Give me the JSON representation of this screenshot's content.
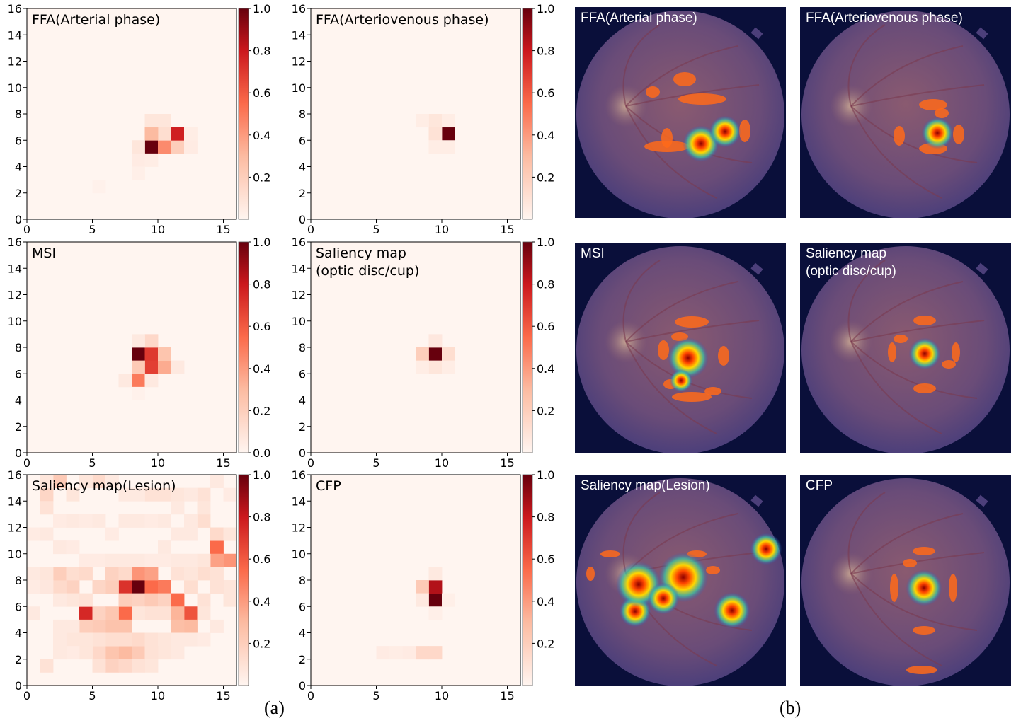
{
  "figure": {
    "label_a": "(a)",
    "label_b": "(b)",
    "colors": {
      "cmap": [
        "#fff5f0",
        "#fcbba1",
        "#fb6a4a",
        "#cb181d",
        "#67000d"
      ],
      "fundus_bg": "#0a0f3a"
    }
  },
  "chart_data": [
    {
      "type": "heatmap",
      "title": "FFA(Arterial phase)",
      "xlim": [
        0,
        16
      ],
      "ylim": [
        0,
        16
      ],
      "xticks": [
        "0",
        "5",
        "10",
        "15"
      ],
      "yticks": [
        "0",
        "2",
        "4",
        "6",
        "8",
        "10",
        "12",
        "14",
        "16"
      ],
      "colorbar": {
        "ticks": [
          "0.2",
          "0.4",
          "0.6",
          "0.8",
          "1.0"
        ],
        "range": [
          0,
          1
        ]
      },
      "cells": [
        [
          9,
          5,
          1.0
        ],
        [
          10,
          5,
          0.45
        ],
        [
          11,
          5,
          0.2
        ],
        [
          11,
          6,
          0.78
        ],
        [
          10,
          6,
          0.12
        ],
        [
          9,
          6,
          0.3
        ],
        [
          9,
          7,
          0.08
        ],
        [
          10,
          7,
          0.08
        ],
        [
          8,
          5,
          0.08
        ],
        [
          8,
          4,
          0.05
        ],
        [
          9,
          4,
          0.04
        ],
        [
          12,
          5,
          0.05
        ],
        [
          12,
          6,
          0.04
        ],
        [
          8,
          3,
          0.03
        ],
        [
          5,
          2,
          0.02
        ]
      ]
    },
    {
      "type": "heatmap",
      "title": "FFA(Arteriovenous phase)",
      "xlim": [
        0,
        16
      ],
      "ylim": [
        0,
        16
      ],
      "xticks": [
        "0",
        "5",
        "10",
        "15"
      ],
      "yticks": [
        "0",
        "2",
        "4",
        "6",
        "8",
        "10",
        "12",
        "14",
        "16"
      ],
      "colorbar": {
        "ticks": [
          "0.2",
          "0.4",
          "0.6",
          "0.8",
          "1.0"
        ],
        "range": [
          0,
          1
        ]
      },
      "cells": [
        [
          10,
          6,
          1.0
        ],
        [
          9,
          6,
          0.1
        ],
        [
          9,
          7,
          0.08
        ],
        [
          8,
          7,
          0.04
        ],
        [
          10,
          7,
          0.04
        ],
        [
          10,
          5,
          0.04
        ],
        [
          9,
          5,
          0.04
        ]
      ]
    },
    {
      "type": "heatmap",
      "title": "MSI",
      "xlim": [
        0,
        16
      ],
      "ylim": [
        0,
        16
      ],
      "xticks": [
        "0",
        "5",
        "10",
        "15"
      ],
      "yticks": [
        "0",
        "2",
        "4",
        "6",
        "8",
        "10",
        "12",
        "14",
        "16"
      ],
      "colorbar": {
        "ticks": [
          "0.0",
          "0.2",
          "0.4",
          "0.6",
          "0.8",
          "1.0"
        ],
        "range": [
          0,
          1
        ]
      },
      "cells": [
        [
          8,
          7,
          1.0
        ],
        [
          9,
          7,
          0.7
        ],
        [
          9,
          6,
          0.68
        ],
        [
          10,
          6,
          0.35
        ],
        [
          10,
          7,
          0.25
        ],
        [
          8,
          5,
          0.5
        ],
        [
          8,
          6,
          0.22
        ],
        [
          9,
          8,
          0.15
        ],
        [
          8,
          8,
          0.06
        ],
        [
          11,
          6,
          0.06
        ],
        [
          7,
          5,
          0.06
        ],
        [
          9,
          5,
          0.06
        ],
        [
          8,
          4,
          0.02
        ]
      ]
    },
    {
      "type": "heatmap",
      "title": "Saliency map\n(optic disc/cup)",
      "xlim": [
        0,
        16
      ],
      "ylim": [
        0,
        16
      ],
      "xticks": [
        "0",
        "5",
        "10",
        "15"
      ],
      "yticks": [
        "0",
        "2",
        "4",
        "6",
        "8",
        "10",
        "12",
        "14",
        "16"
      ],
      "colorbar": {
        "ticks": [
          "0.2",
          "0.4",
          "0.6",
          "0.8",
          "1.0"
        ],
        "range": [
          0,
          1
        ]
      },
      "cells": [
        [
          9,
          7,
          1.0
        ],
        [
          8,
          7,
          0.2
        ],
        [
          10,
          7,
          0.12
        ],
        [
          9,
          8,
          0.07
        ],
        [
          9,
          6,
          0.08
        ],
        [
          8,
          6,
          0.04
        ],
        [
          10,
          6,
          0.04
        ]
      ]
    },
    {
      "type": "heatmap",
      "title": "Saliency map(Lesion)",
      "xlim": [
        0,
        16
      ],
      "ylim": [
        0,
        16
      ],
      "xticks": [
        "0",
        "5",
        "10",
        "15"
      ],
      "yticks": [
        "0",
        "2",
        "4",
        "6",
        "8",
        "10",
        "12",
        "14",
        "16"
      ],
      "colorbar": {
        "ticks": [
          "0.2",
          "0.4",
          "0.6",
          "0.8",
          "1.0"
        ],
        "range": [
          0,
          1
        ]
      },
      "cells": [
        [
          8,
          7,
          1.0
        ],
        [
          7,
          7,
          0.72
        ],
        [
          9,
          7,
          0.55
        ],
        [
          10,
          7,
          0.5
        ],
        [
          8,
          8,
          0.42
        ],
        [
          9,
          8,
          0.38
        ],
        [
          4,
          5,
          0.75
        ],
        [
          12,
          5,
          0.62
        ],
        [
          11,
          6,
          0.55
        ],
        [
          7,
          5,
          0.55
        ],
        [
          14,
          10,
          0.55
        ],
        [
          15,
          9,
          0.42
        ],
        [
          14,
          9,
          0.38
        ],
        [
          11,
          5,
          0.32
        ],
        [
          12,
          4,
          0.3
        ],
        [
          11,
          4,
          0.28
        ],
        [
          6,
          4,
          0.26
        ],
        [
          7,
          4,
          0.26
        ],
        [
          5,
          4,
          0.22
        ],
        [
          4,
          4,
          0.2
        ],
        [
          6,
          5,
          0.24
        ],
        [
          5,
          5,
          0.18
        ],
        [
          7,
          6,
          0.2
        ],
        [
          8,
          6,
          0.18
        ],
        [
          9,
          6,
          0.22
        ],
        [
          10,
          6,
          0.18
        ],
        [
          6,
          7,
          0.2
        ],
        [
          5,
          7,
          0.16
        ],
        [
          3,
          7,
          0.18
        ],
        [
          2,
          7,
          0.14
        ],
        [
          2,
          8,
          0.2
        ],
        [
          3,
          8,
          0.12
        ],
        [
          4,
          8,
          0.14
        ],
        [
          6,
          8,
          0.18
        ],
        [
          7,
          8,
          0.14
        ],
        [
          7,
          2,
          0.3
        ],
        [
          6,
          2,
          0.25
        ],
        [
          8,
          2,
          0.22
        ],
        [
          5,
          2,
          0.15
        ],
        [
          6,
          1,
          0.18
        ],
        [
          7,
          1,
          0.15
        ],
        [
          8,
          3,
          0.14
        ],
        [
          7,
          3,
          0.12
        ],
        [
          9,
          3,
          0.1
        ],
        [
          6,
          3,
          0.12
        ],
        [
          5,
          3,
          0.1
        ],
        [
          10,
          3,
          0.08
        ],
        [
          4,
          2,
          0.08
        ],
        [
          5,
          1,
          0.1
        ],
        [
          1,
          1,
          0.1
        ],
        [
          2,
          15,
          0.22
        ],
        [
          1,
          14,
          0.16
        ],
        [
          5,
          15,
          0.14
        ],
        [
          1,
          13,
          0.1
        ],
        [
          3,
          14,
          0.08
        ],
        [
          9,
          14,
          0.1
        ],
        [
          10,
          14,
          0.1
        ],
        [
          11,
          14,
          0.08
        ],
        [
          13,
          14,
          0.1
        ],
        [
          13,
          12,
          0.12
        ],
        [
          14,
          11,
          0.14
        ],
        [
          15,
          11,
          0.08
        ],
        [
          13,
          8,
          0.12
        ],
        [
          14,
          8,
          0.1
        ],
        [
          12,
          7,
          0.12
        ],
        [
          11,
          8,
          0.1
        ],
        [
          12,
          8,
          0.08
        ],
        [
          13,
          6,
          0.1
        ],
        [
          13,
          5,
          0.08
        ],
        [
          10,
          5,
          0.1
        ],
        [
          9,
          5,
          0.1
        ],
        [
          8,
          5,
          0.08
        ],
        [
          3,
          6,
          0.08
        ],
        [
          2,
          6,
          0.06
        ],
        [
          4,
          6,
          0.1
        ],
        [
          0,
          8,
          0.06
        ],
        [
          0,
          7,
          0.05
        ],
        [
          1,
          8,
          0.08
        ],
        [
          1,
          7,
          0.07
        ],
        [
          0,
          5,
          0.06
        ],
        [
          2,
          4,
          0.06
        ],
        [
          3,
          4,
          0.06
        ],
        [
          3,
          3,
          0.08
        ],
        [
          2,
          3,
          0.06
        ],
        [
          4,
          3,
          0.08
        ],
        [
          11,
          3,
          0.06
        ],
        [
          12,
          3,
          0.06
        ],
        [
          13,
          3,
          0.05
        ],
        [
          10,
          2,
          0.08
        ],
        [
          11,
          2,
          0.06
        ],
        [
          9,
          2,
          0.1
        ],
        [
          9,
          1,
          0.08
        ],
        [
          8,
          1,
          0.1
        ],
        [
          3,
          2,
          0.05
        ],
        [
          2,
          2,
          0.06
        ],
        [
          2,
          10,
          0.06
        ],
        [
          3,
          10,
          0.05
        ],
        [
          10,
          10,
          0.06
        ],
        [
          11,
          11,
          0.06
        ],
        [
          12,
          11,
          0.06
        ],
        [
          14,
          4,
          0.06
        ],
        [
          15,
          6,
          0.08
        ],
        [
          15,
          7,
          0.08
        ],
        [
          14,
          7,
          0.1
        ],
        [
          1,
          15,
          0.08
        ],
        [
          4,
          15,
          0.08
        ],
        [
          6,
          15,
          0.06
        ],
        [
          7,
          14,
          0.06
        ],
        [
          8,
          14,
          0.06
        ],
        [
          12,
          14,
          0.06
        ],
        [
          14,
          15,
          0.06
        ],
        [
          15,
          14,
          0.05
        ],
        [
          0,
          11,
          0.05
        ],
        [
          1,
          11,
          0.06
        ],
        [
          2,
          12,
          0.05
        ],
        [
          3,
          12,
          0.06
        ],
        [
          4,
          12,
          0.05
        ],
        [
          5,
          12,
          0.06
        ],
        [
          6,
          11,
          0.05
        ],
        [
          7,
          12,
          0.06
        ],
        [
          8,
          12,
          0.06
        ],
        [
          9,
          12,
          0.05
        ],
        [
          10,
          12,
          0.06
        ],
        [
          11,
          13,
          0.06
        ],
        [
          12,
          12,
          0.06
        ],
        [
          13,
          13,
          0.08
        ],
        [
          4,
          9,
          0.05
        ],
        [
          5,
          9,
          0.05
        ],
        [
          6,
          9,
          0.06
        ],
        [
          7,
          9,
          0.06
        ],
        [
          8,
          9,
          0.06
        ],
        [
          9,
          9,
          0.05
        ],
        [
          10,
          9,
          0.05
        ],
        [
          11,
          9,
          0.06
        ],
        [
          12,
          9,
          0.06
        ],
        [
          13,
          9,
          0.08
        ]
      ]
    },
    {
      "type": "heatmap",
      "title": "CFP",
      "xlim": [
        0,
        16
      ],
      "ylim": [
        0,
        16
      ],
      "xticks": [
        "0",
        "5",
        "10",
        "15"
      ],
      "yticks": [
        "0",
        "2",
        "4",
        "6",
        "8",
        "10",
        "12",
        "14",
        "16"
      ],
      "colorbar": {
        "ticks": [
          "0.2",
          "0.4",
          "0.6",
          "0.8",
          "1.0"
        ],
        "range": [
          0,
          1
        ]
      },
      "cells": [
        [
          9,
          6,
          1.0
        ],
        [
          9,
          7,
          0.85
        ],
        [
          8,
          7,
          0.22
        ],
        [
          9,
          8,
          0.06
        ],
        [
          8,
          6,
          0.06
        ],
        [
          9,
          2,
          0.15
        ],
        [
          8,
          2,
          0.15
        ],
        [
          5,
          2,
          0.05
        ],
        [
          7,
          2,
          0.05
        ],
        [
          6,
          2,
          0.04
        ],
        [
          9,
          5,
          0.03
        ],
        [
          10,
          6,
          0.03
        ]
      ]
    }
  ],
  "overlays": [
    {
      "label": "FFA(Arterial phase)"
    },
    {
      "label": "FFA(Arteriovenous phase)"
    },
    {
      "label": "MSI"
    },
    {
      "label": "Saliency map\n(optic disc/cup)"
    },
    {
      "label": "Saliency map(Lesion)"
    },
    {
      "label": "CFP"
    }
  ]
}
